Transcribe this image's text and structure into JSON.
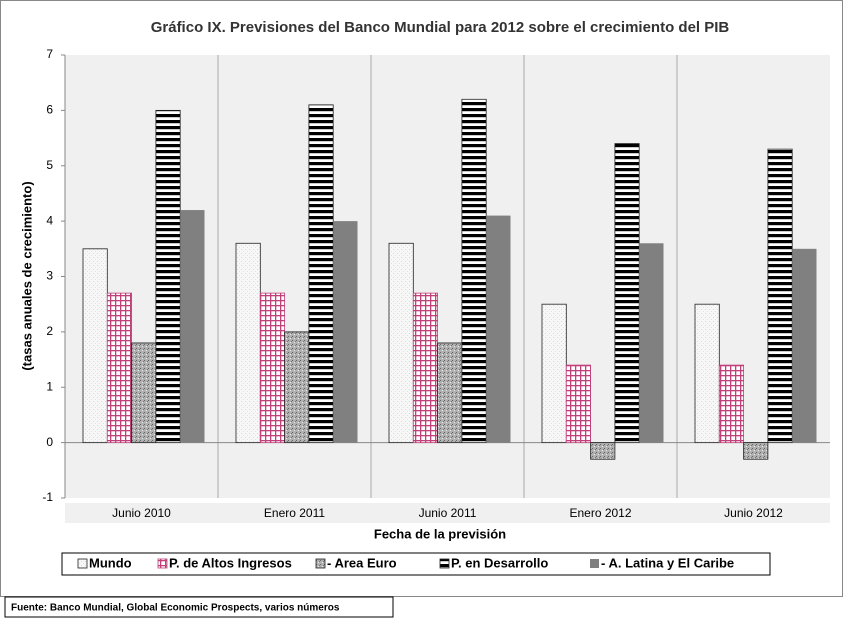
{
  "chart_data": {
    "type": "bar",
    "title": "Gráfico IX. Previsiones del Banco Mundial para 2012 sobre el crecimiento del PIB",
    "xlabel": "Fecha de la previsión",
    "ylabel": "(tasas anuales de crecimiento)",
    "source": "Fuente: Banco Mundial, Global Economic Prospects, varios números",
    "categories": [
      "Junio 2010",
      "Enero 2011",
      "Junio 2011",
      "Enero 2012",
      "Junio 2012"
    ],
    "series": [
      {
        "name": "Mundo",
        "color": "#efefef",
        "values": [
          3.5,
          3.6,
          3.6,
          2.5,
          2.5
        ]
      },
      {
        "name": "P. de Altos Ingresos",
        "color": "#c0407a",
        "values": [
          2.7,
          2.7,
          2.7,
          1.4,
          1.4
        ]
      },
      {
        "name": "- Area Euro",
        "color": "#a6a6a6",
        "values": [
          1.8,
          2.0,
          1.8,
          -0.3,
          -0.3
        ]
      },
      {
        "name": "P. en Desarrollo",
        "color": "#000000",
        "values": [
          6.0,
          6.1,
          6.2,
          5.4,
          5.3
        ]
      },
      {
        "name": "- A. Latina y El Caribe",
        "color": "#808080",
        "values": [
          4.2,
          4.0,
          4.1,
          3.6,
          3.5
        ]
      }
    ],
    "ylim": [
      -1,
      7
    ],
    "yticks": [
      -1,
      0,
      1,
      2,
      3,
      4,
      5,
      6,
      7
    ],
    "legend": "bottom"
  }
}
